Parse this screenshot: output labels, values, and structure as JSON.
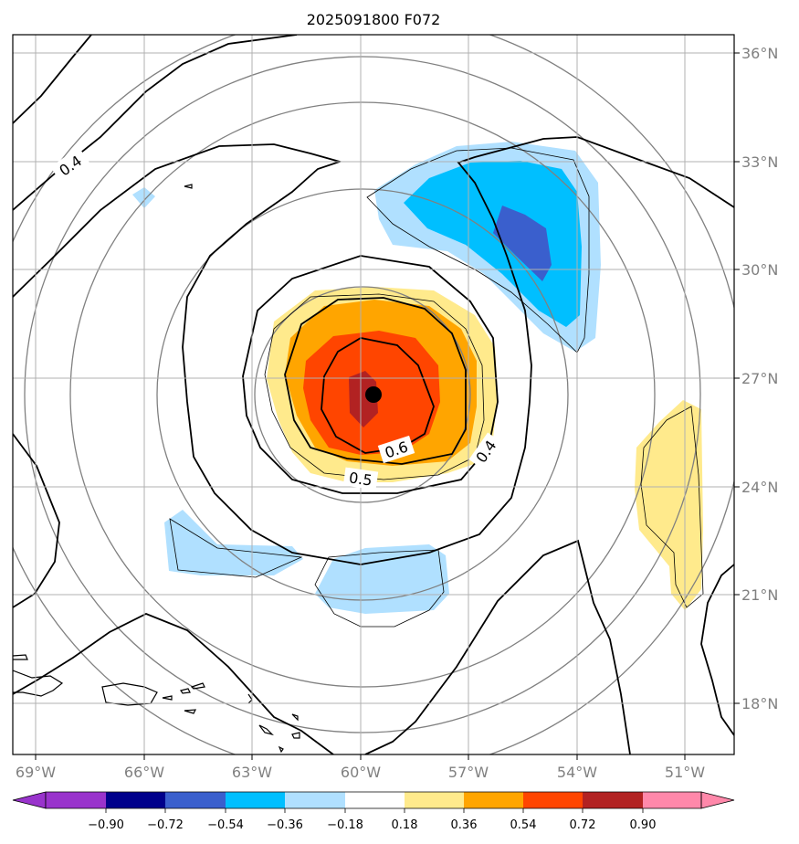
{
  "title": "2025091800 F072",
  "map": {
    "lon_range": [
      -70,
      -50
    ],
    "lat_range": [
      16.5,
      36.5
    ],
    "storm_center": {
      "lon": -59.7,
      "lat": 26.5
    },
    "lon_ticks": [
      "69°W",
      "66°W",
      "63°W",
      "60°W",
      "57°W",
      "54°W",
      "51°W"
    ],
    "lat_ticks": [
      "36°N",
      "33°N",
      "30°N",
      "27°N",
      "24°N",
      "21°N",
      "18°N"
    ],
    "contour_labels": [
      "0.4",
      "0.6",
      "0.5",
      "0.4"
    ],
    "grid": true,
    "colors": {
      "gray_circle": "#808080",
      "contour": "#000000",
      "grid": "#b0b0b0",
      "center_dot": "#000000"
    }
  },
  "colorbar": {
    "ticks": [
      "−0.90",
      "−0.72",
      "−0.54",
      "−0.36",
      "−0.18",
      "0.18",
      "0.36",
      "0.54",
      "0.72",
      "0.90"
    ],
    "colors": [
      "#9933cc",
      "#00008b",
      "#3a5fcd",
      "#00bfff",
      "#b0e0ff",
      "#ffffff",
      "#ffea8c",
      "#ffa500",
      "#ff4500",
      "#b22222",
      "#ff88aa"
    ]
  }
}
